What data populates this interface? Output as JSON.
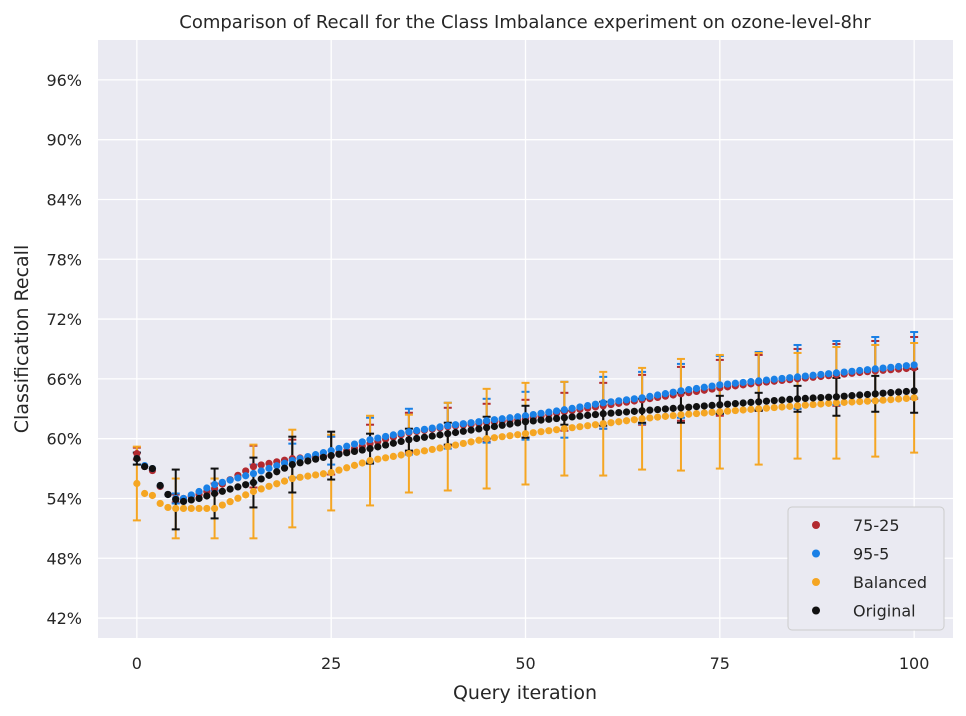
{
  "chart_data": {
    "type": "scatter",
    "title": "Comparison of Recall for the Class Imbalance experiment on ozone-level-8hr",
    "xlabel": "Query iteration",
    "ylabel": "Classification Recall",
    "xlim": [
      -5,
      105
    ],
    "ylim": [
      0.4,
      1.0
    ],
    "xticks": [
      0,
      25,
      50,
      75,
      100
    ],
    "yticks": [
      0.42,
      0.48,
      0.54,
      0.6,
      0.66,
      0.72,
      0.78,
      0.84,
      0.9,
      0.96
    ],
    "ytick_format": "percent",
    "grid": true,
    "legend_position": "lower-right",
    "background": "#eaeaf2",
    "x_count": 101,
    "error_every": 5,
    "series": [
      {
        "name": "75-25",
        "color": "#b22a30",
        "anchors": [
          [
            0,
            0.585
          ],
          [
            1,
            0.572
          ],
          [
            2,
            0.568
          ],
          [
            3,
            0.552
          ],
          [
            4,
            0.544
          ],
          [
            5,
            0.54
          ],
          [
            6,
            0.54
          ],
          [
            8,
            0.544
          ],
          [
            10,
            0.55
          ],
          [
            15,
            0.572
          ],
          [
            20,
            0.58
          ],
          [
            25,
            0.583
          ],
          [
            30,
            0.595
          ],
          [
            35,
            0.606
          ],
          [
            40,
            0.612
          ],
          [
            45,
            0.616
          ],
          [
            50,
            0.62
          ],
          [
            55,
            0.627
          ],
          [
            60,
            0.633
          ],
          [
            65,
            0.639
          ],
          [
            70,
            0.645
          ],
          [
            75,
            0.651
          ],
          [
            80,
            0.656
          ],
          [
            85,
            0.66
          ],
          [
            90,
            0.664
          ],
          [
            95,
            0.668
          ],
          [
            100,
            0.671
          ]
        ],
        "errors": [
          [
            0,
            0.006
          ],
          [
            5,
            0.004
          ],
          [
            10,
            0.005
          ],
          [
            15,
            0.021
          ],
          [
            20,
            0.019
          ],
          [
            25,
            0.019
          ],
          [
            30,
            0.019
          ],
          [
            35,
            0.02
          ],
          [
            40,
            0.019
          ],
          [
            45,
            0.019
          ],
          [
            50,
            0.019
          ],
          [
            55,
            0.019
          ],
          [
            60,
            0.023
          ],
          [
            65,
            0.025
          ],
          [
            70,
            0.027
          ],
          [
            75,
            0.028
          ],
          [
            80,
            0.028
          ],
          [
            85,
            0.03
          ],
          [
            90,
            0.031
          ],
          [
            95,
            0.03
          ],
          [
            100,
            0.031
          ]
        ]
      },
      {
        "name": "95-5",
        "color": "#1a80e6",
        "anchors": [
          [
            0,
            0.58
          ],
          [
            1,
            0.573
          ],
          [
            2,
            0.57
          ],
          [
            3,
            0.553
          ],
          [
            4,
            0.544
          ],
          [
            5,
            0.54
          ],
          [
            6,
            0.54
          ],
          [
            8,
            0.547
          ],
          [
            10,
            0.554
          ],
          [
            15,
            0.565
          ],
          [
            20,
            0.578
          ],
          [
            25,
            0.588
          ],
          [
            30,
            0.599
          ],
          [
            35,
            0.607
          ],
          [
            40,
            0.613
          ],
          [
            45,
            0.618
          ],
          [
            50,
            0.623
          ],
          [
            55,
            0.629
          ],
          [
            60,
            0.636
          ],
          [
            65,
            0.641
          ],
          [
            70,
            0.648
          ],
          [
            75,
            0.654
          ],
          [
            80,
            0.658
          ],
          [
            85,
            0.662
          ],
          [
            90,
            0.666
          ],
          [
            95,
            0.67
          ],
          [
            100,
            0.674
          ]
        ],
        "errors": [
          [
            0,
            0.006
          ],
          [
            5,
            0.005
          ],
          [
            10,
            0.006
          ],
          [
            15,
            0.009
          ],
          [
            20,
            0.017
          ],
          [
            25,
            0.014
          ],
          [
            30,
            0.022
          ],
          [
            35,
            0.023
          ],
          [
            40,
            0.023
          ],
          [
            45,
            0.022
          ],
          [
            50,
            0.024
          ],
          [
            55,
            0.028
          ],
          [
            60,
            0.026
          ],
          [
            65,
            0.026
          ],
          [
            70,
            0.027
          ],
          [
            75,
            0.029
          ],
          [
            80,
            0.029
          ],
          [
            85,
            0.032
          ],
          [
            90,
            0.032
          ],
          [
            95,
            0.032
          ],
          [
            100,
            0.033
          ]
        ]
      },
      {
        "name": "Balanced",
        "color": "#f5a623",
        "anchors": [
          [
            0,
            0.555
          ],
          [
            1,
            0.545
          ],
          [
            2,
            0.543
          ],
          [
            3,
            0.535
          ],
          [
            4,
            0.531
          ],
          [
            5,
            0.53
          ],
          [
            6,
            0.53
          ],
          [
            8,
            0.53
          ],
          [
            10,
            0.53
          ],
          [
            15,
            0.547
          ],
          [
            20,
            0.56
          ],
          [
            25,
            0.566
          ],
          [
            30,
            0.578
          ],
          [
            35,
            0.585
          ],
          [
            40,
            0.592
          ],
          [
            45,
            0.6
          ],
          [
            50,
            0.605
          ],
          [
            55,
            0.61
          ],
          [
            60,
            0.615
          ],
          [
            65,
            0.62
          ],
          [
            70,
            0.624
          ],
          [
            75,
            0.627
          ],
          [
            80,
            0.63
          ],
          [
            85,
            0.633
          ],
          [
            90,
            0.636
          ],
          [
            95,
            0.638
          ],
          [
            100,
            0.641
          ]
        ],
        "errors": [
          [
            0,
            0.037
          ],
          [
            5,
            0.03
          ],
          [
            10,
            0.03
          ],
          [
            15,
            0.047
          ],
          [
            20,
            0.049
          ],
          [
            25,
            0.038
          ],
          [
            30,
            0.045
          ],
          [
            35,
            0.039
          ],
          [
            40,
            0.044
          ],
          [
            45,
            0.05
          ],
          [
            50,
            0.051
          ],
          [
            55,
            0.047
          ],
          [
            60,
            0.052
          ],
          [
            65,
            0.051
          ],
          [
            70,
            0.056
          ],
          [
            75,
            0.057
          ],
          [
            80,
            0.056
          ],
          [
            85,
            0.053
          ],
          [
            90,
            0.056
          ],
          [
            95,
            0.056
          ],
          [
            100,
            0.055
          ]
        ]
      },
      {
        "name": "Original",
        "color": "#111111",
        "anchors": [
          [
            0,
            0.58
          ],
          [
            1,
            0.572
          ],
          [
            2,
            0.57
          ],
          [
            3,
            0.553
          ],
          [
            4,
            0.544
          ],
          [
            5,
            0.539
          ],
          [
            6,
            0.537
          ],
          [
            8,
            0.54
          ],
          [
            10,
            0.545
          ],
          [
            15,
            0.556
          ],
          [
            20,
            0.574
          ],
          [
            25,
            0.583
          ],
          [
            30,
            0.59
          ],
          [
            35,
            0.599
          ],
          [
            40,
            0.605
          ],
          [
            45,
            0.611
          ],
          [
            50,
            0.617
          ],
          [
            55,
            0.621
          ],
          [
            60,
            0.625
          ],
          [
            65,
            0.628
          ],
          [
            70,
            0.631
          ],
          [
            75,
            0.634
          ],
          [
            80,
            0.637
          ],
          [
            85,
            0.64
          ],
          [
            90,
            0.642
          ],
          [
            95,
            0.645
          ],
          [
            100,
            0.648
          ]
        ],
        "errors": [
          [
            0,
            0.006
          ],
          [
            5,
            0.03
          ],
          [
            10,
            0.025
          ],
          [
            15,
            0.025
          ],
          [
            20,
            0.028
          ],
          [
            25,
            0.024
          ],
          [
            30,
            0.015
          ],
          [
            35,
            0.011
          ],
          [
            40,
            0.011
          ],
          [
            45,
            0.011
          ],
          [
            50,
            0.016
          ],
          [
            55,
            0.007
          ],
          [
            60,
            0.012
          ],
          [
            65,
            0.012
          ],
          [
            70,
            0.015
          ],
          [
            75,
            0.009
          ],
          [
            80,
            0.009
          ],
          [
            85,
            0.013
          ],
          [
            90,
            0.019
          ],
          [
            95,
            0.018
          ],
          [
            100,
            0.022
          ]
        ]
      }
    ]
  }
}
